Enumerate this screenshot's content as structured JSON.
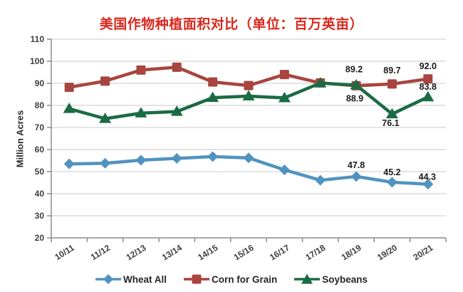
{
  "chart_data": {
    "type": "line",
    "title": "美国作物种植面积对比（单位：百万英亩）",
    "title_color": "#d9281e",
    "ylabel": "Million Acres",
    "ylim": [
      20,
      110
    ],
    "yticks": [
      110,
      100,
      90,
      80,
      70,
      60,
      50,
      40,
      30,
      20
    ],
    "grid": true,
    "legend_position": "bottom",
    "categories": [
      "10/11",
      "11/12",
      "12/13",
      "13/14",
      "14/15",
      "15/16",
      "16/17",
      "17/18",
      "18/19",
      "19/20",
      "20/21"
    ],
    "series": [
      {
        "name": "Wheat All",
        "marker": "diamond",
        "color": "#5093c0",
        "values": [
          53.5,
          53.8,
          55.2,
          56.0,
          56.8,
          56.2,
          50.8,
          46.1,
          47.8,
          45.2,
          44.3
        ],
        "point_labels": [
          {
            "index": 8,
            "text": "47.8",
            "dx": 0,
            "dy": -12
          },
          {
            "index": 9,
            "text": "45.2",
            "dx": 0,
            "dy": -10
          },
          {
            "index": 10,
            "text": "44.3",
            "dx": -1,
            "dy": -6
          }
        ]
      },
      {
        "name": "Corn for Grain",
        "marker": "square",
        "color": "#a7453e",
        "values": [
          88.2,
          91.0,
          96.0,
          97.3,
          90.6,
          89.0,
          94.0,
          90.2,
          88.9,
          89.7,
          92.0
        ],
        "point_labels": [
          {
            "index": 8,
            "text": "88.9",
            "dx": -2,
            "dy": 22
          },
          {
            "index": 9,
            "text": "89.7",
            "dx": 0,
            "dy": -15
          },
          {
            "index": 10,
            "text": "92.0",
            "dx": 0,
            "dy": -14
          }
        ]
      },
      {
        "name": "Soybeans",
        "marker": "triangle",
        "color": "#1b6b45",
        "values": [
          78.5,
          74.0,
          76.5,
          77.2,
          83.5,
          84.2,
          83.4,
          90.1,
          89.2,
          76.1,
          83.8
        ],
        "point_labels": [
          {
            "index": 8,
            "text": "89.2",
            "dx": -3,
            "dy": -18
          },
          {
            "index": 9,
            "text": "76.1",
            "dx": -2,
            "dy": 17
          },
          {
            "index": 10,
            "text": "83.8",
            "dx": 0,
            "dy": -10
          }
        ]
      }
    ]
  }
}
